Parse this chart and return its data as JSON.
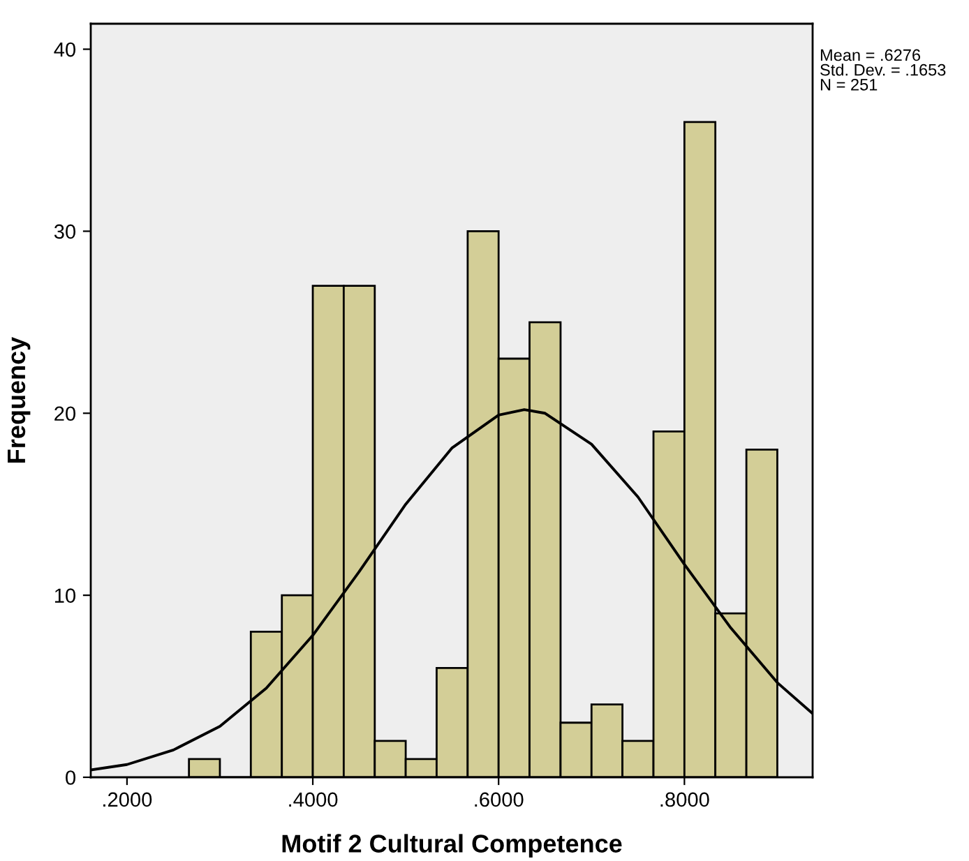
{
  "chart_data": {
    "type": "histogram",
    "xlabel": "Motif 2 Cultural Competence",
    "ylabel": "Frequency",
    "annotations": [
      "Mean = .6276\nStd. Dev. = .1653\nN = 251"
    ],
    "bins": [
      0.2667,
      0.3,
      0.3333,
      0.3667,
      0.4,
      0.4333,
      0.4667,
      0.5,
      0.5333,
      0.5667,
      0.6,
      0.6333,
      0.6667,
      0.7,
      0.7333,
      0.7667,
      0.8,
      0.8333,
      0.8667,
      0.9
    ],
    "values": [
      1,
      0,
      8,
      10,
      27,
      27,
      2,
      1,
      6,
      30,
      23,
      25,
      3,
      4,
      2,
      19,
      36,
      9,
      18
    ],
    "color": "#d3ce97",
    "series": [
      {
        "type": "line",
        "color": "#000000",
        "x": [
          0.161,
          0.2,
          0.25,
          0.3,
          0.35,
          0.4,
          0.45,
          0.5,
          0.55,
          0.6,
          0.6276,
          0.65,
          0.7,
          0.75,
          0.8,
          0.85,
          0.9,
          0.938
        ],
        "values": [
          0.4,
          0.7,
          1.5,
          2.8,
          4.9,
          7.8,
          11.3,
          15.0,
          18.1,
          19.9,
          20.2,
          20.0,
          18.3,
          15.4,
          11.7,
          8.2,
          5.2,
          3.5
        ]
      }
    ],
    "xlim": [
      0.161,
      0.938
    ],
    "ylim": [
      0,
      41.4
    ],
    "xticks": [
      {
        "value": 0.2,
        "label": ".2000"
      },
      {
        "value": 0.4,
        "label": ".4000"
      },
      {
        "value": 0.6,
        "label": ".6000"
      },
      {
        "value": 0.8,
        "label": ".8000"
      }
    ],
    "yticks": [
      0,
      10,
      20,
      30,
      40
    ],
    "grid": false
  }
}
